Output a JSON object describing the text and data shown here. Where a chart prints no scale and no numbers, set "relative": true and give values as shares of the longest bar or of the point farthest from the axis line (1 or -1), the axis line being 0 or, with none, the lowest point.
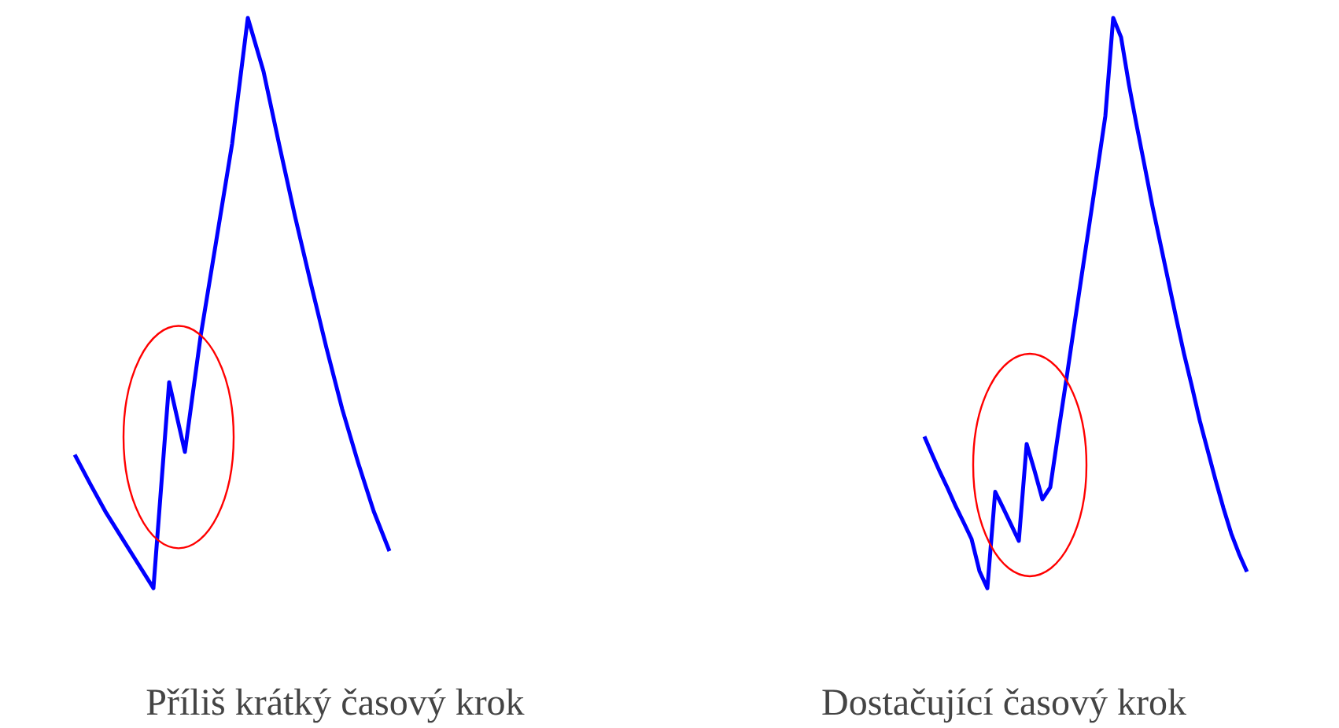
{
  "chart_data": [
    {
      "type": "line",
      "xlabel": "Příliš krátký časový krok",
      "relative": true,
      "categories": [
        null,
        null,
        null,
        null,
        null,
        null,
        null,
        null,
        null,
        null,
        null,
        null,
        null,
        null,
        null,
        null,
        null,
        null,
        null,
        null,
        null
      ],
      "series": [
        {
          "color": "#0000ff",
          "values": [
            0.234,
            0.182,
            0.132,
            0.088,
            0.044,
            0,
            0.361,
            0.239,
            0.442,
            0.61,
            0.779,
            1.0,
            0.906,
            0.777,
            0.652,
            0.535,
            0.421,
            0.314,
            0.221,
            0.135,
            0.065
          ]
        }
      ]
    },
    {
      "type": "line",
      "xlabel": "Dostačující časový krok",
      "relative": true,
      "categories": [
        null,
        null,
        null,
        null,
        null,
        null,
        null,
        null,
        null,
        null,
        null,
        null,
        null,
        null,
        null,
        null,
        null,
        null,
        null,
        null,
        null,
        null,
        null,
        null,
        null,
        null,
        null,
        null,
        null,
        null,
        null,
        null,
        null,
        null,
        null,
        null,
        null,
        null,
        null,
        null,
        null,
        null
      ],
      "series": [
        {
          "color": "#0000ff",
          "values": [
            0.266,
            0.234,
            0.203,
            0.174,
            0.143,
            0.115,
            0.086,
            0.03,
            0,
            0.169,
            0.141,
            0.112,
            0.083,
            0.253,
            0.206,
            0.156,
            0.177,
            0.271,
            0.362,
            0.456,
            0.549,
            0.641,
            0.734,
            0.828,
            1.0,
            0.966,
            0.883,
            0.81,
            0.74,
            0.669,
            0.604,
            0.539,
            0.474,
            0.411,
            0.354,
            0.294,
            0.242,
            0.19,
            0.141,
            0.096,
            0.06,
            0.029
          ]
        }
      ]
    }
  ]
}
